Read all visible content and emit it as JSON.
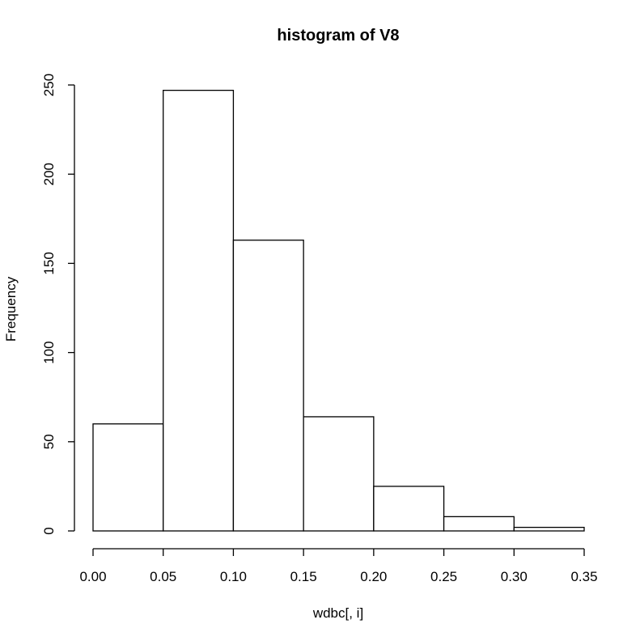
{
  "chart_data": {
    "type": "bar",
    "title": "histogram of  V8",
    "xlabel": "wdbc[, i]",
    "ylabel": "Frequency",
    "bins": [
      {
        "start": 0.0,
        "end": 0.05,
        "count": 60
      },
      {
        "start": 0.05,
        "end": 0.1,
        "count": 247
      },
      {
        "start": 0.1,
        "end": 0.15,
        "count": 163
      },
      {
        "start": 0.15,
        "end": 0.2,
        "count": 64
      },
      {
        "start": 0.2,
        "end": 0.25,
        "count": 25
      },
      {
        "start": 0.25,
        "end": 0.3,
        "count": 8
      },
      {
        "start": 0.3,
        "end": 0.35,
        "count": 2
      }
    ],
    "x_ticks": [
      "0.00",
      "0.05",
      "0.10",
      "0.15",
      "0.20",
      "0.25",
      "0.30",
      "0.35"
    ],
    "y_ticks": [
      "0",
      "50",
      "100",
      "150",
      "200",
      "250"
    ],
    "xlim": [
      0,
      0.35
    ],
    "ylim": [
      0,
      250
    ],
    "grid": false
  }
}
